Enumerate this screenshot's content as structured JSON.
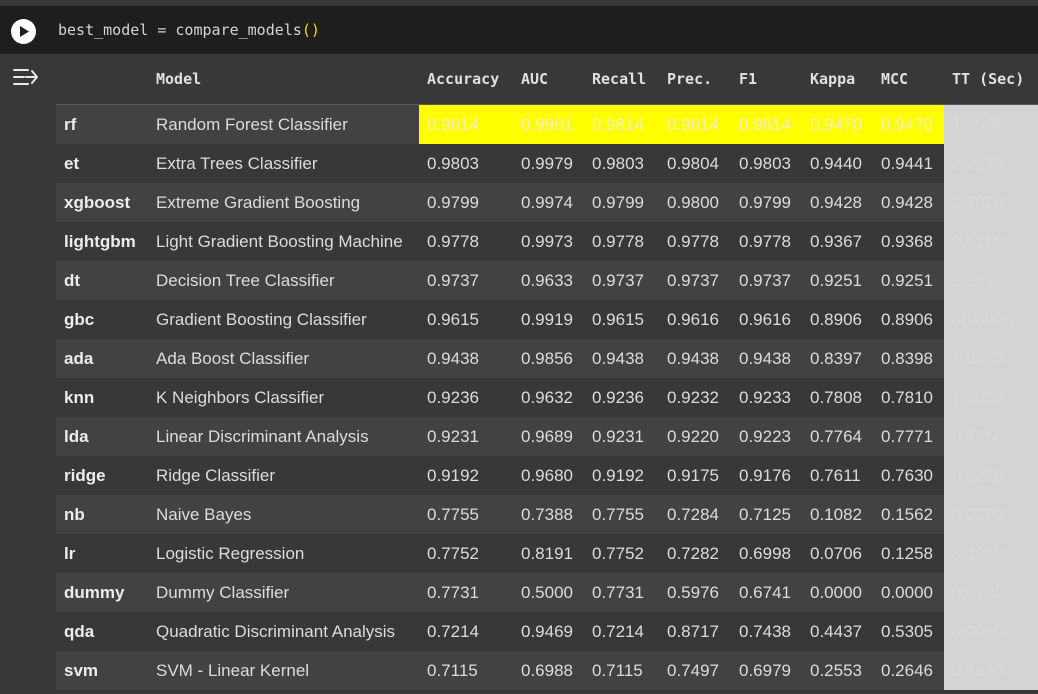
{
  "code": {
    "text": "best_model = compare_models",
    "paren": "()"
  },
  "colors": {
    "highlight": "#ffff00",
    "cell_bg": "#1e1e1e",
    "output_bg": "#383838",
    "tt_column_bg": "#d4d4d4"
  },
  "icons": {
    "run": "play-circle-icon",
    "output": "output-toggle-icon"
  },
  "table": {
    "headers": [
      "",
      "Model",
      "Accuracy",
      "AUC",
      "Recall",
      "Prec.",
      "F1",
      "Kappa",
      "MCC",
      "TT (Sec)"
    ],
    "highlighted_row": 0,
    "rows": [
      {
        "id": "rf",
        "model": "Random Forest Classifier",
        "accuracy": "0.9814",
        "auc": "0.9981",
        "recall": "0.9814",
        "prec": "0.9814",
        "f1": "0.9814",
        "kappa": "0.9470",
        "mcc": "0.9470",
        "tt": "1.6580"
      },
      {
        "id": "et",
        "model": "Extra Trees Classifier",
        "accuracy": "0.9803",
        "auc": "0.9979",
        "recall": "0.9803",
        "prec": "0.9804",
        "f1": "0.9803",
        "kappa": "0.9440",
        "mcc": "0.9441",
        "tt": "2.2370"
      },
      {
        "id": "xgboost",
        "model": "Extreme Gradient Boosting",
        "accuracy": "0.9799",
        "auc": "0.9974",
        "recall": "0.9799",
        "prec": "0.9800",
        "f1": "0.9799",
        "kappa": "0.9428",
        "mcc": "0.9428",
        "tt": "1.7820"
      },
      {
        "id": "lightgbm",
        "model": "Light Gradient Boosting Machine",
        "accuracy": "0.9778",
        "auc": "0.9973",
        "recall": "0.9778",
        "prec": "0.9778",
        "f1": "0.9778",
        "kappa": "0.9367",
        "mcc": "0.9368",
        "tt": "0.5150"
      },
      {
        "id": "dt",
        "model": "Decision Tree Classifier",
        "accuracy": "0.9737",
        "auc": "0.9633",
        "recall": "0.9737",
        "prec": "0.9737",
        "f1": "0.9737",
        "kappa": "0.9251",
        "mcc": "0.9251",
        "tt": "1.1570"
      },
      {
        "id": "gbc",
        "model": "Gradient Boosting Classifier",
        "accuracy": "0.9615",
        "auc": "0.9919",
        "recall": "0.9615",
        "prec": "0.9616",
        "f1": "0.9616",
        "kappa": "0.8906",
        "mcc": "0.8906",
        "tt": "38.5920"
      },
      {
        "id": "ada",
        "model": "Ada Boost Classifier",
        "accuracy": "0.9438",
        "auc": "0.9856",
        "recall": "0.9438",
        "prec": "0.9438",
        "f1": "0.9438",
        "kappa": "0.8397",
        "mcc": "0.8398",
        "tt": "1.0870"
      },
      {
        "id": "knn",
        "model": "K Neighbors Classifier",
        "accuracy": "0.9236",
        "auc": "0.9632",
        "recall": "0.9236",
        "prec": "0.9232",
        "f1": "0.9233",
        "kappa": "0.7808",
        "mcc": "0.7810",
        "tt": "1.0830"
      },
      {
        "id": "lda",
        "model": "Linear Discriminant Analysis",
        "accuracy": "0.9231",
        "auc": "0.9689",
        "recall": "0.9231",
        "prec": "0.9220",
        "f1": "0.9223",
        "kappa": "0.7764",
        "mcc": "0.7771",
        "tt": "0.1250"
      },
      {
        "id": "ridge",
        "model": "Ridge Classifier",
        "accuracy": "0.9192",
        "auc": "0.9680",
        "recall": "0.9192",
        "prec": "0.9175",
        "f1": "0.9176",
        "kappa": "0.7611",
        "mcc": "0.7630",
        "tt": "0.0210"
      },
      {
        "id": "nb",
        "model": "Naive Bayes",
        "accuracy": "0.7755",
        "auc": "0.7388",
        "recall": "0.7755",
        "prec": "0.7284",
        "f1": "0.7125",
        "kappa": "0.1082",
        "mcc": "0.1562",
        "tt": "0.0260"
      },
      {
        "id": "lr",
        "model": "Logistic Regression",
        "accuracy": "0.7752",
        "auc": "0.8191",
        "recall": "0.7752",
        "prec": "0.7282",
        "f1": "0.6998",
        "kappa": "0.0706",
        "mcc": "0.1258",
        "tt": "3.1310"
      },
      {
        "id": "dummy",
        "model": "Dummy Classifier",
        "accuracy": "0.7731",
        "auc": "0.5000",
        "recall": "0.7731",
        "prec": "0.5976",
        "f1": "0.6741",
        "kappa": "0.0000",
        "mcc": "0.0000",
        "tt": "0.0220"
      },
      {
        "id": "qda",
        "model": "Quadratic Discriminant Analysis",
        "accuracy": "0.7214",
        "auc": "0.9469",
        "recall": "0.7214",
        "prec": "0.8717",
        "f1": "0.7438",
        "kappa": "0.4437",
        "mcc": "0.5305",
        "tt": "0.0640"
      },
      {
        "id": "svm",
        "model": "SVM - Linear Kernel",
        "accuracy": "0.7115",
        "auc": "0.6988",
        "recall": "0.7115",
        "prec": "0.7497",
        "f1": "0.6979",
        "kappa": "0.2553",
        "mcc": "0.2646",
        "tt": "0.1930"
      }
    ]
  }
}
